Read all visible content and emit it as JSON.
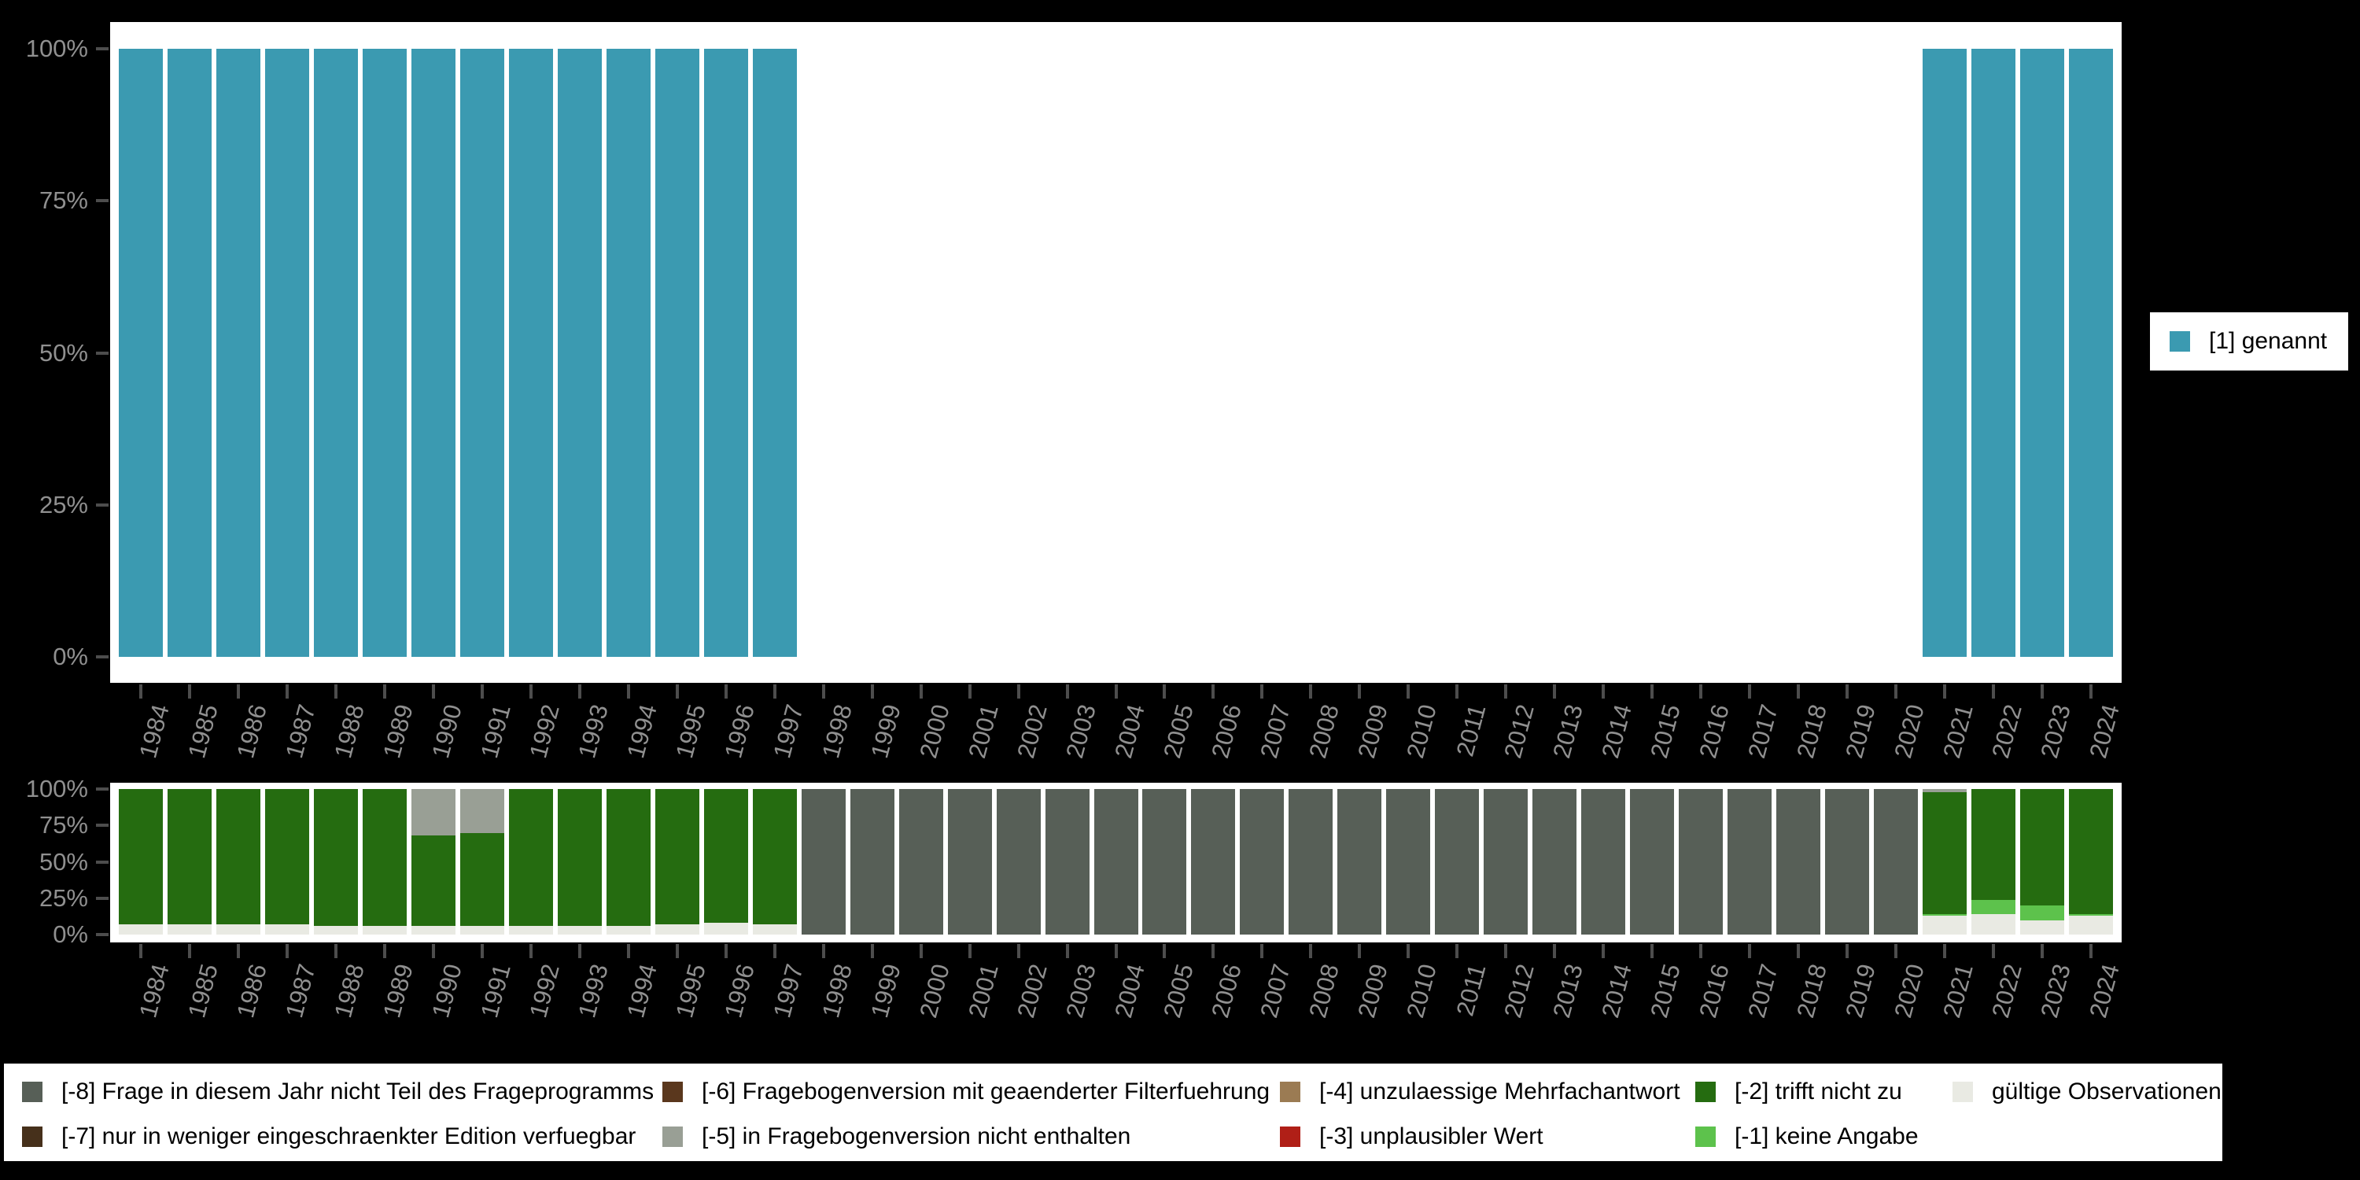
{
  "colors": {
    "background": "#000000",
    "panel": "#ffffff",
    "axis_text": "#909090",
    "tick": "#4d4d4d",
    "legend_text": "#000000",
    "genannt": "#3b9ab1",
    "m8": "#575f57",
    "m7": "#46301b",
    "m6": "#5a371d",
    "m5": "#999f95",
    "m4": "#9b7b53",
    "m3": "#b01f17",
    "m2": "#256c10",
    "m1": "#5dc24c",
    "valid": "#e9eae3"
  },
  "top_legend": {
    "label": "[1] genannt",
    "color": "genannt"
  },
  "legend": {
    "items": {
      "m8": {
        "label": "[-8] Frage in diesem Jahr nicht Teil des Frageprogramms",
        "color": "m8"
      },
      "m7": {
        "label": "[-7] nur in weniger eingeschraenkter Edition verfuegbar",
        "color": "m7"
      },
      "m6": {
        "label": "[-6] Fragebogenversion mit geaenderter Filterfuehrung",
        "color": "m6"
      },
      "m5": {
        "label": "[-5] in Fragebogenversion nicht enthalten",
        "color": "m5"
      },
      "m4": {
        "label": "[-4] unzulaessige Mehrfachantwort",
        "color": "m4"
      },
      "m3": {
        "label": "[-3] unplausibler Wert",
        "color": "m3"
      },
      "m2": {
        "label": "[-2] trifft nicht zu",
        "color": "m2"
      },
      "m1": {
        "label": "[-1] keine Angabe",
        "color": "m1"
      },
      "valid": {
        "label": "gültige Observationen",
        "color": "valid"
      }
    },
    "columns": [
      [
        "m8",
        "m7"
      ],
      [
        "m6",
        "m5"
      ],
      [
        "m4",
        "m3"
      ],
      [
        "m2",
        "m1"
      ],
      [
        "valid"
      ]
    ]
  },
  "chart_data": [
    {
      "type": "bar",
      "stacked": true,
      "title": "",
      "xlabel": "",
      "ylabel": "",
      "ylim": [
        0,
        100
      ],
      "grid": false,
      "legend_position": "right",
      "y_ticks": [
        {
          "label": "100%",
          "value": 100
        },
        {
          "label": "75%",
          "value": 75
        },
        {
          "label": "50%",
          "value": 50
        },
        {
          "label": "25%",
          "value": 25
        },
        {
          "label": "0%",
          "value": 0
        }
      ],
      "x": [
        "1984",
        "1985",
        "1986",
        "1987",
        "1988",
        "1989",
        "1990",
        "1991",
        "1992",
        "1993",
        "1994",
        "1995",
        "1996",
        "1997",
        "1998",
        "1999",
        "2000",
        "2001",
        "2002",
        "2003",
        "2004",
        "2005",
        "2006",
        "2007",
        "2008",
        "2009",
        "2010",
        "2011",
        "2012",
        "2013",
        "2014",
        "2015",
        "2016",
        "2017",
        "2018",
        "2019",
        "2020",
        "2021",
        "2022",
        "2023",
        "2024"
      ],
      "series": [
        {
          "name": "[1] genannt",
          "color": "genannt",
          "values": [
            100,
            100,
            100,
            100,
            100,
            100,
            100,
            100,
            100,
            100,
            100,
            100,
            100,
            100,
            0,
            0,
            0,
            0,
            0,
            0,
            0,
            0,
            0,
            0,
            0,
            0,
            0,
            0,
            0,
            0,
            0,
            0,
            0,
            0,
            0,
            0,
            0,
            100,
            100,
            100,
            100
          ]
        }
      ]
    },
    {
      "type": "bar",
      "stacked": true,
      "title": "",
      "xlabel": "",
      "ylabel": "",
      "ylim": [
        0,
        100
      ],
      "grid": false,
      "legend_position": "bottom",
      "y_ticks": [
        {
          "label": "100%",
          "value": 100
        },
        {
          "label": "75%",
          "value": 75
        },
        {
          "label": "50%",
          "value": 50
        },
        {
          "label": "25%",
          "value": 25
        },
        {
          "label": "0%",
          "value": 0
        }
      ],
      "x": [
        "1984",
        "1985",
        "1986",
        "1987",
        "1988",
        "1989",
        "1990",
        "1991",
        "1992",
        "1993",
        "1994",
        "1995",
        "1996",
        "1997",
        "1998",
        "1999",
        "2000",
        "2001",
        "2002",
        "2003",
        "2004",
        "2005",
        "2006",
        "2007",
        "2008",
        "2009",
        "2010",
        "2011",
        "2012",
        "2013",
        "2014",
        "2015",
        "2016",
        "2017",
        "2018",
        "2019",
        "2020",
        "2021",
        "2022",
        "2023",
        "2024"
      ],
      "series": [
        {
          "name": "gültige Observationen",
          "color": "valid",
          "values": [
            7,
            7,
            7,
            7,
            6,
            6,
            6,
            6,
            6,
            6,
            6,
            7,
            8,
            7,
            0,
            0,
            0,
            0,
            0,
            0,
            0,
            0,
            0,
            0,
            0,
            0,
            0,
            0,
            0,
            0,
            0,
            0,
            0,
            0,
            0,
            0,
            0,
            13,
            14,
            10,
            13
          ]
        },
        {
          "name": "[-1] keine Angabe",
          "color": "m1",
          "values": [
            0,
            0,
            0,
            0,
            0,
            0,
            0,
            0,
            0,
            0,
            0,
            0,
            0,
            0,
            0,
            0,
            0,
            0,
            0,
            0,
            0,
            0,
            0,
            0,
            0,
            0,
            0,
            0,
            0,
            0,
            0,
            0,
            0,
            0,
            0,
            0,
            0,
            1,
            10,
            10,
            1
          ]
        },
        {
          "name": "[-2] trifft nicht zu",
          "color": "m2",
          "values": [
            93,
            93,
            93,
            93,
            94,
            94,
            62,
            64,
            94,
            94,
            94,
            93,
            92,
            93,
            0,
            0,
            0,
            0,
            0,
            0,
            0,
            0,
            0,
            0,
            0,
            0,
            0,
            0,
            0,
            0,
            0,
            0,
            0,
            0,
            0,
            0,
            0,
            84,
            76,
            80,
            86
          ]
        },
        {
          "name": "[-5] in Fragebogenversion nicht enthalten",
          "color": "m5",
          "values": [
            0,
            0,
            0,
            0,
            0,
            0,
            32,
            30,
            0,
            0,
            0,
            0,
            0,
            0,
            0,
            0,
            0,
            0,
            0,
            0,
            0,
            0,
            0,
            0,
            0,
            0,
            0,
            0,
            0,
            0,
            0,
            0,
            0,
            0,
            0,
            0,
            0,
            2,
            0,
            0,
            0
          ]
        },
        {
          "name": "[-8] Frage in diesem Jahr nicht Teil des Frageprogramms",
          "color": "m8",
          "values": [
            0,
            0,
            0,
            0,
            0,
            0,
            0,
            0,
            0,
            0,
            0,
            0,
            0,
            0,
            100,
            100,
            100,
            100,
            100,
            100,
            100,
            100,
            100,
            100,
            100,
            100,
            100,
            100,
            100,
            100,
            100,
            100,
            100,
            100,
            100,
            100,
            100,
            0,
            0,
            0,
            0
          ]
        }
      ]
    }
  ]
}
